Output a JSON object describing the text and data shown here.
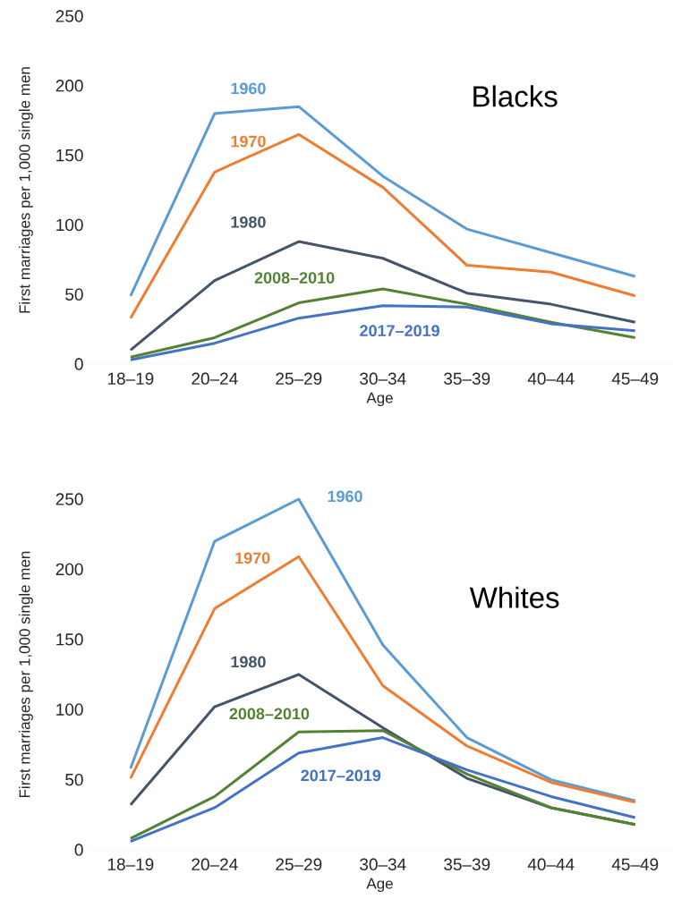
{
  "chart_data": [
    {
      "type": "line",
      "title": "Blacks",
      "xlabel": "Age",
      "ylabel": "First marriages per 1,000 single men",
      "categories": [
        "18–19",
        "20–24",
        "25–29",
        "30–34",
        "35–39",
        "40–44",
        "45–49"
      ],
      "ylim": [
        0,
        250
      ],
      "yticks": [
        0,
        50,
        100,
        150,
        200,
        250
      ],
      "series": [
        {
          "name": "1960",
          "color": "#5b9bd5",
          "values": [
            49,
            180,
            185,
            135,
            97,
            80,
            63
          ]
        },
        {
          "name": "1970",
          "color": "#ed7d31",
          "values": [
            33,
            138,
            165,
            127,
            71,
            66,
            49
          ]
        },
        {
          "name": "1980",
          "color": "#44546a",
          "values": [
            10,
            60,
            88,
            76,
            51,
            43,
            30
          ]
        },
        {
          "name": "2008–2010",
          "color": "#548235",
          "values": [
            5,
            19,
            44,
            54,
            43,
            30,
            19
          ]
        },
        {
          "name": "2017–2019",
          "color": "#4472c4",
          "values": [
            3,
            15,
            33,
            42,
            41,
            29,
            24
          ]
        }
      ]
    },
    {
      "type": "line",
      "title": "Whites",
      "xlabel": "Age",
      "ylabel": "First marriages per 1,000 single men",
      "categories": [
        "18–19",
        "20–24",
        "25–29",
        "30–34",
        "35–39",
        "40–44",
        "45–49"
      ],
      "ylim": [
        0,
        250
      ],
      "yticks": [
        0,
        50,
        100,
        150,
        200,
        250
      ],
      "series": [
        {
          "name": "1960",
          "color": "#5b9bd5",
          "values": [
            58,
            220,
            250,
            146,
            80,
            50,
            35
          ]
        },
        {
          "name": "1970",
          "color": "#ed7d31",
          "values": [
            51,
            172,
            209,
            117,
            74,
            48,
            34
          ]
        },
        {
          "name": "1980",
          "color": "#44546a",
          "values": [
            32,
            102,
            125,
            87,
            51,
            30,
            18
          ]
        },
        {
          "name": "2008–2010",
          "color": "#548235",
          "values": [
            8,
            38,
            84,
            85,
            54,
            30,
            18
          ]
        },
        {
          "name": "2017–2019",
          "color": "#4472c4",
          "values": [
            6,
            30,
            69,
            80,
            57,
            38,
            23
          ]
        }
      ]
    }
  ]
}
